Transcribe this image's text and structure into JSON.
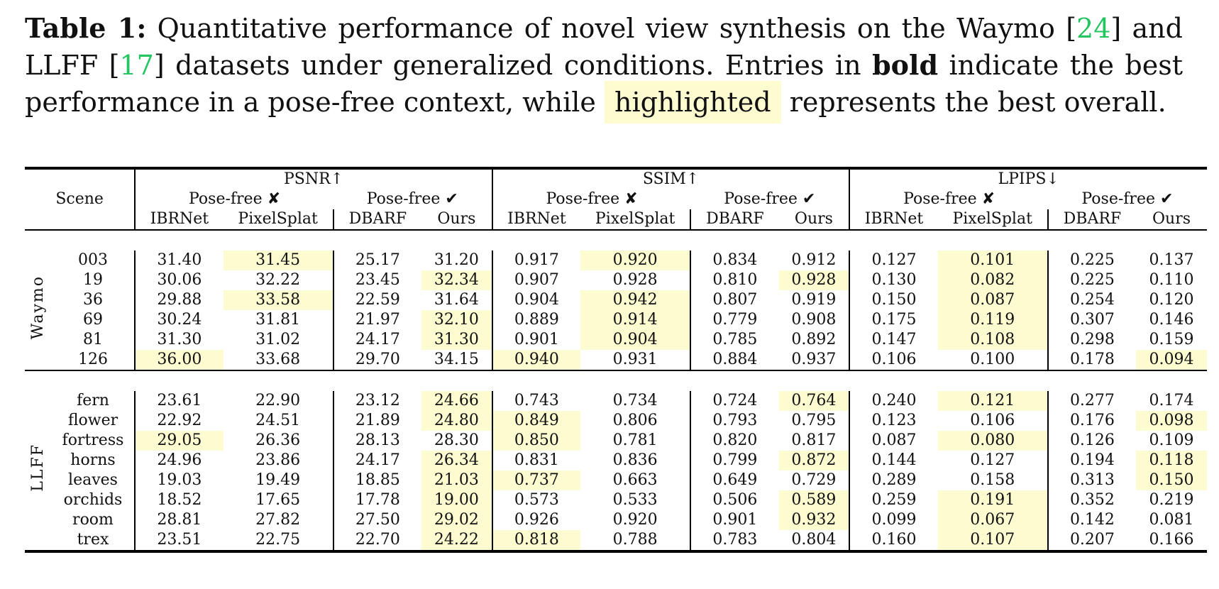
{
  "caption": {
    "label": "Table 1:",
    "text_1": " Quantitative performance of novel view synthesis on the Waymo [",
    "ref_1": "24",
    "text_2": "] and LLFF [",
    "ref_2": "17",
    "text_3": "] datasets under generalized conditions. Entries in ",
    "bold_word": "bold",
    "text_4": " indicate the best performance in a pose-free context, while ",
    "highlight_word": "highlighted",
    "text_5": " represents the best overall."
  },
  "table": {
    "scene_header": "Scene",
    "metrics": [
      "PSNR↑",
      "SSIM↑",
      "LPIPS↓"
    ],
    "groups": [
      "Pose-free ✘",
      "Pose-free ✔"
    ],
    "methods": [
      "IBRNet",
      "PixelSplat",
      "DBARF",
      "Ours"
    ],
    "colors": {
      "highlight": "#fdfbd0",
      "ref_link": "#22c55e"
    },
    "sections": [
      {
        "name": "Waymo",
        "rows": [
          {
            "scene": "003",
            "psnr": [
              "31.40",
              "31.45",
              "25.17",
              "31.20"
            ],
            "ssim": [
              "0.917",
              "0.920",
              "0.834",
              "0.912"
            ],
            "lpips": [
              "0.127",
              "0.101",
              "0.225",
              "0.137"
            ]
          },
          {
            "scene": "19",
            "psnr": [
              "30.06",
              "32.22",
              "23.45",
              "32.34"
            ],
            "ssim": [
              "0.907",
              "0.928",
              "0.810",
              "0.928"
            ],
            "lpips": [
              "0.130",
              "0.082",
              "0.225",
              "0.110"
            ]
          },
          {
            "scene": "36",
            "psnr": [
              "29.88",
              "33.58",
              "22.59",
              "31.64"
            ],
            "ssim": [
              "0.904",
              "0.942",
              "0.807",
              "0.919"
            ],
            "lpips": [
              "0.150",
              "0.087",
              "0.254",
              "0.120"
            ]
          },
          {
            "scene": "69",
            "psnr": [
              "30.24",
              "31.81",
              "21.97",
              "32.10"
            ],
            "ssim": [
              "0.889",
              "0.914",
              "0.779",
              "0.908"
            ],
            "lpips": [
              "0.175",
              "0.119",
              "0.307",
              "0.146"
            ]
          },
          {
            "scene": "81",
            "psnr": [
              "31.30",
              "31.02",
              "24.17",
              "31.30"
            ],
            "ssim": [
              "0.901",
              "0.904",
              "0.785",
              "0.892"
            ],
            "lpips": [
              "0.147",
              "0.108",
              "0.298",
              "0.159"
            ]
          },
          {
            "scene": "126",
            "psnr": [
              "36.00",
              "33.68",
              "29.70",
              "34.15"
            ],
            "ssim": [
              "0.940",
              "0.931",
              "0.884",
              "0.937"
            ],
            "lpips": [
              "0.106",
              "0.100",
              "0.178",
              "0.094"
            ]
          }
        ]
      },
      {
        "name": "LLFF",
        "rows": [
          {
            "scene": "fern",
            "psnr": [
              "23.61",
              "22.90",
              "23.12",
              "24.66"
            ],
            "ssim": [
              "0.743",
              "0.734",
              "0.724",
              "0.764"
            ],
            "lpips": [
              "0.240",
              "0.121",
              "0.277",
              "0.174"
            ]
          },
          {
            "scene": "flower",
            "psnr": [
              "22.92",
              "24.51",
              "21.89",
              "24.80"
            ],
            "ssim": [
              "0.849",
              "0.806",
              "0.793",
              "0.795"
            ],
            "lpips": [
              "0.123",
              "0.106",
              "0.176",
              "0.098"
            ]
          },
          {
            "scene": "fortress",
            "psnr": [
              "29.05",
              "26.36",
              "28.13",
              "28.30"
            ],
            "ssim": [
              "0.850",
              "0.781",
              "0.820",
              "0.817"
            ],
            "lpips": [
              "0.087",
              "0.080",
              "0.126",
              "0.109"
            ]
          },
          {
            "scene": "horns",
            "psnr": [
              "24.96",
              "23.86",
              "24.17",
              "26.34"
            ],
            "ssim": [
              "0.831",
              "0.836",
              "0.799",
              "0.872"
            ],
            "lpips": [
              "0.144",
              "0.127",
              "0.194",
              "0.118"
            ]
          },
          {
            "scene": "leaves",
            "psnr": [
              "19.03",
              "19.49",
              "18.85",
              "21.03"
            ],
            "ssim": [
              "0.737",
              "0.663",
              "0.649",
              "0.729"
            ],
            "lpips": [
              "0.289",
              "0.158",
              "0.313",
              "0.150"
            ]
          },
          {
            "scene": "orchids",
            "psnr": [
              "18.52",
              "17.65",
              "17.78",
              "19.00"
            ],
            "ssim": [
              "0.573",
              "0.533",
              "0.506",
              "0.589"
            ],
            "lpips": [
              "0.259",
              "0.191",
              "0.352",
              "0.219"
            ]
          },
          {
            "scene": "room",
            "psnr": [
              "28.81",
              "27.82",
              "27.50",
              "29.02"
            ],
            "ssim": [
              "0.926",
              "0.920",
              "0.901",
              "0.932"
            ],
            "lpips": [
              "0.099",
              "0.067",
              "0.142",
              "0.081"
            ]
          },
          {
            "scene": "trex",
            "psnr": [
              "23.51",
              "22.75",
              "22.70",
              "24.22"
            ],
            "ssim": [
              "0.818",
              "0.788",
              "0.783",
              "0.804"
            ],
            "lpips": [
              "0.160",
              "0.107",
              "0.207",
              "0.166"
            ]
          }
        ]
      }
    ]
  }
}
